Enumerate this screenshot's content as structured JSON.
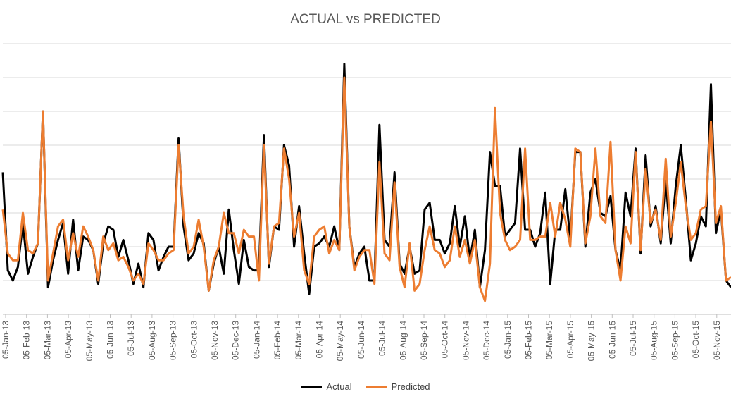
{
  "chart_data": {
    "type": "line",
    "title": "ACTUAL vs PREDICTED",
    "xlabel": "",
    "ylabel": "",
    "x_tick_labels": [
      "05-Jan-13",
      "05-Feb-13",
      "05-Mar-13",
      "05-Apr-13",
      "05-May-13",
      "05-Jun-13",
      "05-Jul-13",
      "05-Aug-13",
      "05-Sep-13",
      "05-Oct-13",
      "05-Nov-13",
      "05-Dec-13",
      "05-Jan-14",
      "05-Feb-14",
      "05-Mar-14",
      "05-Apr-14",
      "05-May-14",
      "05-Jun-14",
      "05-Jul-14",
      "05-Aug-14",
      "05-Sep-14",
      "05-Oct-14",
      "05-Nov-14",
      "05-Dec-14",
      "05-Jan-15",
      "05-Feb-15",
      "05-Mar-15",
      "05-Apr-15",
      "05-May-15",
      "05-Jun-15",
      "05-Jul-15",
      "05-Aug-15",
      "05-Sep-15",
      "05-Oct-15",
      "05-Nov-15"
    ],
    "ylim": [
      0,
      8
    ],
    "grid": "horizontal",
    "legend_position": "bottom",
    "colors": {
      "actual": "#000000",
      "predicted": "#ED7D31",
      "grid": "#d9d9d9",
      "axis_text": "#595959"
    },
    "series": [
      {
        "name": "Actual",
        "values": [
          4.2,
          1.3,
          1.0,
          1.4,
          2.7,
          1.2,
          1.7,
          2.1,
          6.0,
          0.8,
          1.6,
          2.2,
          2.7,
          1.2,
          2.8,
          1.3,
          2.3,
          2.2,
          1.9,
          0.9,
          2.1,
          2.6,
          2.5,
          1.7,
          2.2,
          1.6,
          0.9,
          1.5,
          0.8,
          2.4,
          2.2,
          1.3,
          1.7,
          2.0,
          2.0,
          5.2,
          2.6,
          1.6,
          1.8,
          2.4,
          2.1,
          0.7,
          1.5,
          2.0,
          1.2,
          3.1,
          1.9,
          0.9,
          2.2,
          1.4,
          1.3,
          1.3,
          5.3,
          1.4,
          2.6,
          2.5,
          5.0,
          4.4,
          2.0,
          3.2,
          1.8,
          0.6,
          2.0,
          2.1,
          2.3,
          2.0,
          2.6,
          1.9,
          7.4,
          2.6,
          1.4,
          1.8,
          2.0,
          1.0,
          1.0,
          5.6,
          2.2,
          2.0,
          4.2,
          1.5,
          1.2,
          2.0,
          1.2,
          1.3,
          3.1,
          3.3,
          2.2,
          2.2,
          1.8,
          2.1,
          3.2,
          2.0,
          2.9,
          1.6,
          2.5,
          0.8,
          1.9,
          4.8,
          3.8,
          3.8,
          2.3,
          2.5,
          2.7,
          4.9,
          2.5,
          2.5,
          2.0,
          2.4,
          3.6,
          0.9,
          2.5,
          2.5,
          3.7,
          2.2,
          4.8,
          4.8,
          2.0,
          3.6,
          4.0,
          3.0,
          2.9,
          3.5,
          1.9,
          1.3,
          3.6,
          2.9,
          4.9,
          1.8,
          4.7,
          2.6,
          3.2,
          2.1,
          4.0,
          2.1,
          3.8,
          5.0,
          3.4,
          1.6,
          2.1,
          2.9,
          2.6,
          6.8,
          2.4,
          3.1,
          1.0,
          0.8
        ]
      },
      {
        "name": "Predicted",
        "values": [
          3.1,
          1.8,
          1.6,
          1.6,
          3.0,
          1.9,
          1.8,
          2.1,
          6.0,
          1.0,
          1.8,
          2.6,
          2.8,
          1.6,
          2.4,
          1.7,
          2.6,
          2.3,
          1.9,
          1.0,
          2.3,
          1.9,
          2.1,
          1.6,
          1.7,
          1.4,
          1.0,
          1.2,
          0.9,
          2.1,
          1.9,
          1.6,
          1.6,
          1.8,
          1.9,
          5.0,
          2.9,
          1.8,
          2.0,
          2.8,
          2.0,
          0.7,
          1.6,
          2.0,
          3.0,
          2.4,
          2.4,
          1.8,
          2.5,
          2.3,
          2.3,
          1.0,
          5.0,
          1.5,
          2.6,
          2.7,
          4.9,
          4.0,
          2.3,
          3.0,
          1.3,
          0.9,
          2.3,
          2.5,
          2.6,
          1.8,
          2.2,
          1.9,
          7.0,
          2.6,
          1.3,
          1.7,
          1.9,
          1.9,
          0.9,
          4.5,
          1.8,
          1.6,
          3.9,
          1.4,
          0.8,
          2.1,
          0.7,
          0.9,
          1.9,
          2.6,
          1.9,
          1.8,
          1.4,
          1.6,
          2.6,
          1.7,
          2.2,
          1.5,
          2.2,
          0.8,
          0.4,
          1.5,
          6.1,
          3.0,
          2.2,
          1.9,
          2.0,
          2.2,
          4.9,
          2.2,
          2.2,
          2.3,
          2.3,
          3.3,
          2.3,
          3.3,
          2.8,
          2.0,
          4.9,
          4.8,
          2.1,
          2.9,
          4.9,
          2.9,
          2.7,
          5.1,
          1.9,
          1.0,
          2.6,
          2.1,
          4.8,
          1.9,
          4.3,
          2.7,
          3.1,
          2.2,
          4.6,
          2.3,
          3.3,
          4.5,
          3.2,
          2.2,
          2.4,
          3.1,
          3.2,
          5.7,
          2.7,
          3.2,
          1.0,
          1.1
        ]
      }
    ]
  }
}
